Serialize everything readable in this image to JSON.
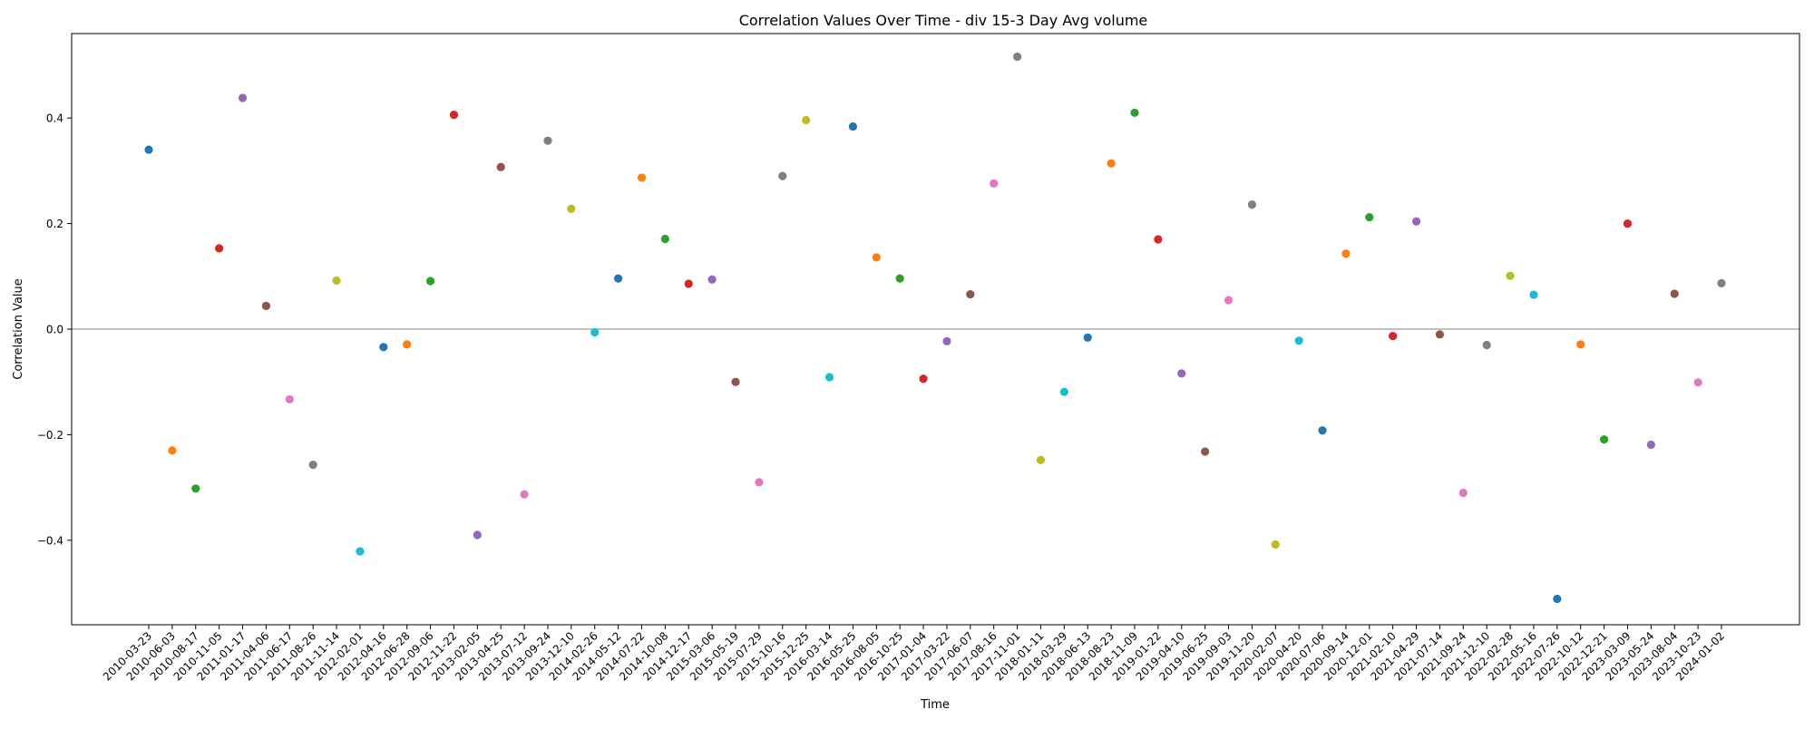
{
  "chart_data": {
    "type": "scatter",
    "title": "Correlation Values Over Time - div 15-3 Day Avg volume",
    "xlabel": "Time",
    "ylabel": "Correlation Value",
    "ylim": [
      -0.56,
      0.56
    ],
    "yticks": [
      -0.4,
      -0.2,
      0.0,
      0.2,
      0.4
    ],
    "ytick_labels": [
      "−0.4",
      "−0.2",
      "0.0",
      "0.2",
      "0.4"
    ],
    "grid": false,
    "reference_line_y": 0.0,
    "x": [
      "2010-03-23",
      "2010-06-03",
      "2010-08-17",
      "2010-11-05",
      "2011-01-17",
      "2011-04-06",
      "2011-06-17",
      "2011-08-26",
      "2011-11-14",
      "2012-02-01",
      "2012-04-16",
      "2012-06-28",
      "2012-09-06",
      "2012-11-22",
      "2013-02-05",
      "2013-04-25",
      "2013-07-12",
      "2013-09-24",
      "2013-12-10",
      "2014-02-26",
      "2014-05-12",
      "2014-07-22",
      "2014-10-08",
      "2014-12-17",
      "2015-03-06",
      "2015-05-19",
      "2015-07-29",
      "2015-10-16",
      "2015-12-25",
      "2016-03-14",
      "2016-05-25",
      "2016-08-05",
      "2016-10-25",
      "2017-01-04",
      "2017-03-22",
      "2017-06-07",
      "2017-08-16",
      "2017-11-01",
      "2018-01-11",
      "2018-03-29",
      "2018-06-13",
      "2018-08-23",
      "2018-11-09",
      "2019-01-22",
      "2019-04-10",
      "2019-06-25",
      "2019-09-03",
      "2019-11-20",
      "2020-02-07",
      "2020-04-20",
      "2020-07-06",
      "2020-09-14",
      "2020-12-01",
      "2021-02-10",
      "2021-04-29",
      "2021-07-14",
      "2021-09-24",
      "2021-12-10",
      "2022-02-28",
      "2022-05-16",
      "2022-07-26",
      "2022-10-12",
      "2022-12-21",
      "2023-03-09",
      "2023-05-24",
      "2023-08-04",
      "2023-10-23",
      "2024-01-02"
    ],
    "y": [
      0.34,
      -0.23,
      -0.302,
      0.153,
      0.438,
      0.044,
      -0.133,
      -0.257,
      0.092,
      -0.421,
      -0.034,
      -0.029,
      0.091,
      0.406,
      -0.39,
      0.307,
      -0.313,
      0.357,
      0.228,
      -0.006,
      0.096,
      0.287,
      0.171,
      0.086,
      0.094,
      -0.1,
      -0.29,
      0.29,
      0.396,
      -0.091,
      0.384,
      0.136,
      0.096,
      -0.094,
      -0.023,
      0.066,
      0.276,
      0.516,
      -0.248,
      -0.119,
      -0.016,
      0.314,
      0.41,
      0.17,
      -0.084,
      -0.232,
      0.055,
      0.236,
      -0.408,
      -0.022,
      -0.192,
      0.143,
      0.212,
      -0.013,
      0.204,
      -0.01,
      -0.31,
      -0.03,
      0.101,
      0.065,
      -0.511,
      -0.029,
      -0.209,
      0.2,
      -0.219,
      0.067,
      -0.101,
      0.087
    ],
    "colors": [
      "#1f77b4",
      "#ff7f0e",
      "#2ca02c",
      "#d62728",
      "#9467bd",
      "#8c564b",
      "#e377c2",
      "#7f7f7f",
      "#bcbd22",
      "#17becf"
    ]
  }
}
